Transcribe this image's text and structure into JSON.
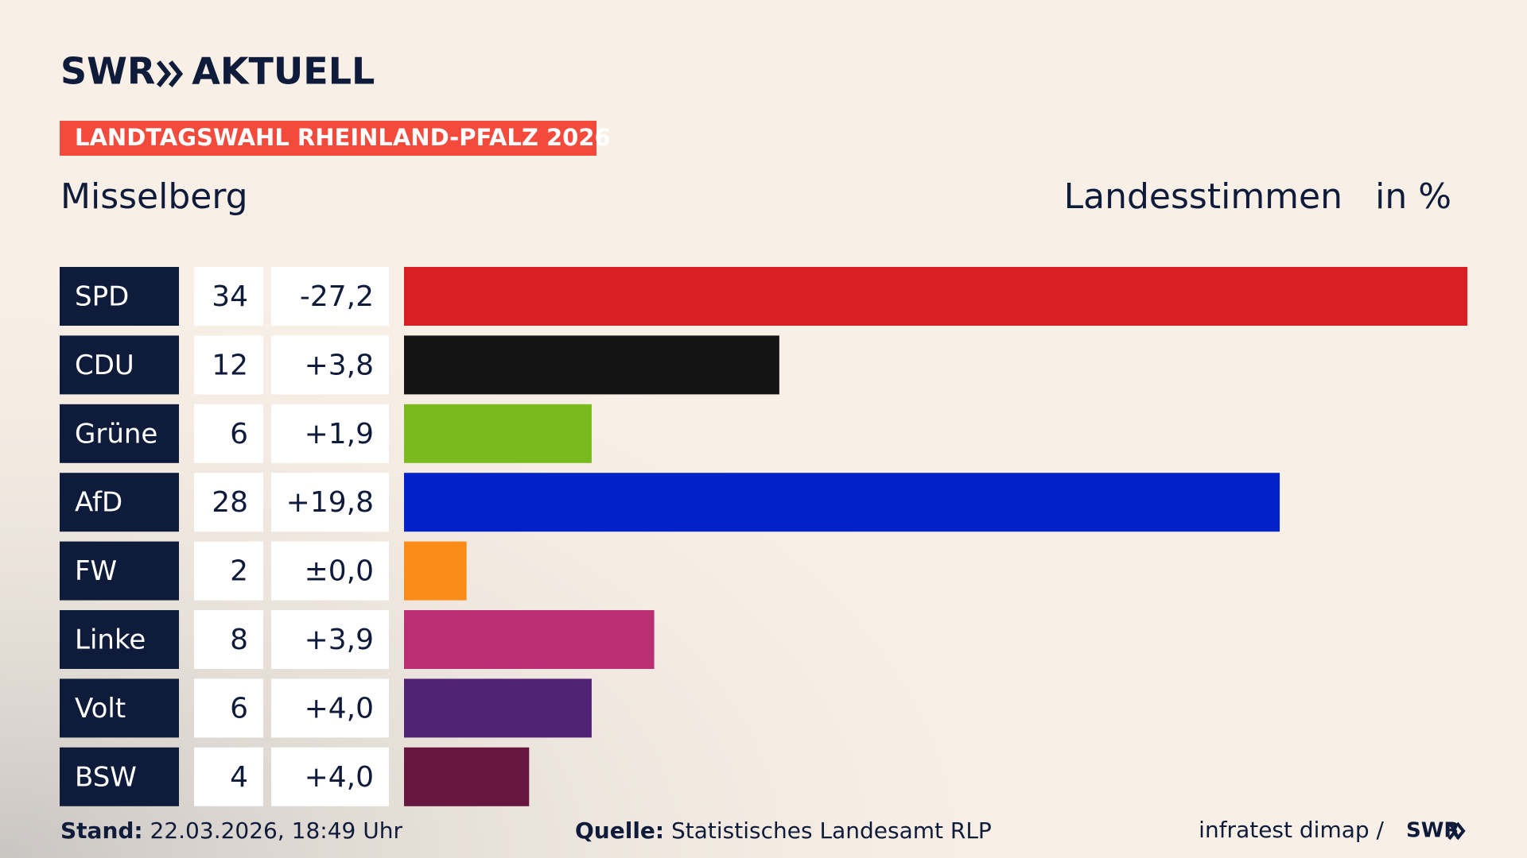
{
  "logo": "SWR",
  "brand": "AKTUELL",
  "banner": "LANDTAGSWAHL RHEINLAND-PFALZ 2026",
  "chart_data": {
    "type": "bar",
    "title": "Misselberg",
    "measure": "Landesstimmen",
    "unit": "in %",
    "categories": [
      "SPD",
      "CDU",
      "Grüne",
      "AfD",
      "FW",
      "Linke",
      "Volt",
      "BSW"
    ],
    "values": [
      34,
      12,
      6,
      28,
      2,
      8,
      6,
      4
    ],
    "changes": [
      "-27,2",
      "+3,8",
      "+1,9",
      "+19,8",
      "±0,0",
      "+3,9",
      "+4,0",
      "+4,0"
    ],
    "colors": [
      "#d81f21",
      "#141414",
      "#7aba1e",
      "#0022c8",
      "#fb8c18",
      "#bb2d74",
      "#512174",
      "#67163e"
    ]
  },
  "footer": {
    "stand_label": "Stand:",
    "stand": "22.03.2026, 18:49 Uhr",
    "source_label": "Quelle:",
    "source": "Statistisches Landesamt RLP",
    "credit": "infratest dimap /",
    "credit_logo": "SWR"
  }
}
